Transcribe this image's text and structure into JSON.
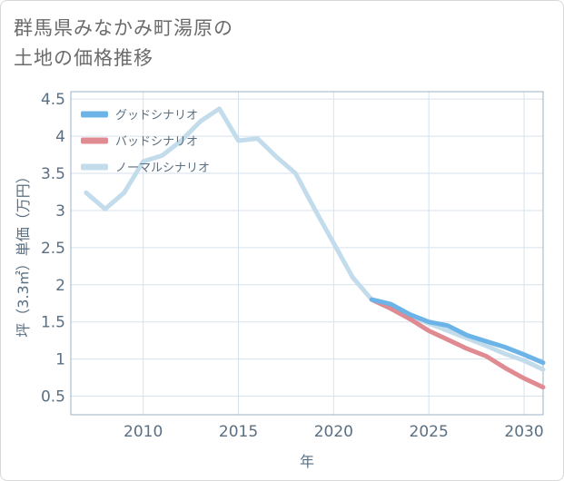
{
  "title_line1": "群馬県みなかみ町湯原の",
  "title_line2": "土地の価格推移",
  "chart_data": {
    "type": "line",
    "xlabel": "年",
    "ylabel": "坪（3.3㎡）単価（万円）",
    "xlim": [
      2006.2,
      2031
    ],
    "ylim": [
      0.25,
      4.6
    ],
    "x_ticks": [
      2010,
      2015,
      2020,
      2025,
      2030
    ],
    "y_ticks": [
      0.5,
      1,
      1.5,
      2,
      2.5,
      3,
      3.5,
      4,
      4.5
    ],
    "x_tick_labels": [
      "2010",
      "2015",
      "2020",
      "2025",
      "2030"
    ],
    "y_tick_labels": [
      "0.5",
      "1",
      "1.5",
      "2",
      "2.5",
      "3",
      "3.5",
      "4",
      "4.5"
    ],
    "legend_position": "top-left",
    "series": [
      {
        "name": "グッドシナリオ",
        "color": "#6cb4e8",
        "x": [
          2022,
          2023,
          2024,
          2025,
          2026,
          2027,
          2028,
          2029,
          2030,
          2031
        ],
        "values": [
          1.8,
          1.74,
          1.6,
          1.5,
          1.45,
          1.32,
          1.24,
          1.16,
          1.06,
          0.95
        ]
      },
      {
        "name": "バッドシナリオ",
        "color": "#e08a92",
        "x": [
          2022,
          2023,
          2024,
          2025,
          2026,
          2027,
          2028,
          2029,
          2030,
          2031
        ],
        "values": [
          1.8,
          1.68,
          1.54,
          1.38,
          1.26,
          1.14,
          1.04,
          0.88,
          0.74,
          0.62
        ]
      },
      {
        "name": "ノーマルシナリオ",
        "color": "#c3dcec",
        "x": [
          2007,
          2008,
          2009,
          2010,
          2011,
          2012,
          2013,
          2014,
          2015,
          2016,
          2017,
          2018,
          2019,
          2020,
          2021,
          2022,
          2023,
          2024,
          2025,
          2026,
          2027,
          2028,
          2029,
          2030,
          2031
        ],
        "values": [
          3.24,
          3.02,
          3.24,
          3.66,
          3.74,
          3.94,
          4.2,
          4.37,
          3.94,
          3.97,
          3.72,
          3.5,
          3.02,
          2.56,
          2.1,
          1.8,
          1.68,
          1.58,
          1.48,
          1.38,
          1.28,
          1.18,
          1.07,
          0.98,
          0.86
        ]
      }
    ]
  }
}
